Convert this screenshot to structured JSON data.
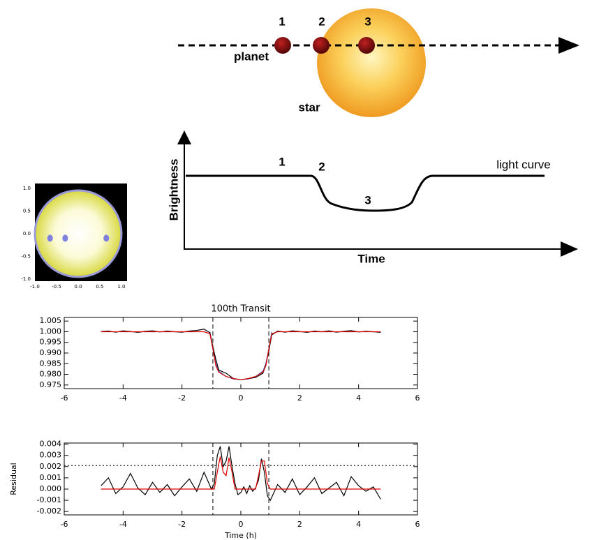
{
  "diagram": {
    "top_labels": [
      "1",
      "2",
      "3"
    ],
    "planet": "planet",
    "star": "star",
    "curve_labels": [
      "1",
      "2",
      "3"
    ],
    "curve_name": "light curve",
    "y_axis": "Brightness",
    "x_axis": "Time"
  },
  "chart_data": [
    {
      "type": "disk",
      "xlim": [
        -1.0,
        1.13
      ],
      "ylim": [
        -1.05,
        1.11
      ],
      "xticks": [
        {
          "value": -1,
          "label": "-1.0"
        },
        {
          "value": -0.5,
          "label": "-0.5"
        },
        {
          "value": 0,
          "label": "0.0"
        },
        {
          "value": 0.5,
          "label": "0.5"
        },
        {
          "value": 1,
          "label": "1.0"
        }
      ],
      "yticks": [
        {
          "value": 1,
          "label": "1.0"
        },
        {
          "value": 0.5,
          "label": "0.5"
        },
        {
          "value": 0,
          "label": "0.0"
        },
        {
          "value": -0.5,
          "label": "-0.5"
        },
        {
          "value": -1,
          "label": "-1.0"
        }
      ],
      "disk_radius": 1.0,
      "disk_color": "#f0f070",
      "limb_color": "#9a9ad8",
      "spot_color": "#8080e0",
      "x": [
        -0.65,
        -0.3,
        0.65
      ],
      "values": [
        -0.1,
        -0.1,
        -0.1
      ]
    },
    {
      "type": "line",
      "title": "100th Transit",
      "xlim": [
        -6,
        6
      ],
      "ylim": [
        0.9733,
        1.0067
      ],
      "xticks": [
        -6,
        -4,
        -2,
        0,
        2,
        4,
        6
      ],
      "yticks": [
        1.005,
        {
          "value": 1,
          "label": "1.000"
        },
        0.995,
        {
          "value": 0.99,
          "label": "0.990"
        },
        0.985,
        {
          "value": 0.98,
          "label": "0.980"
        },
        0.975
      ],
      "vlines": [
        -0.95,
        0.95
      ],
      "x": [
        -4.75,
        -4.5,
        -4.25,
        -4,
        -3.75,
        -3.5,
        -3.25,
        -3,
        -2.75,
        -2.5,
        -2.25,
        -2,
        -1.75,
        -1.5,
        -1.25,
        -1.05,
        -0.95,
        -0.85,
        -0.75,
        -0.5,
        -0.25,
        0,
        0.25,
        0.5,
        0.75,
        0.85,
        0.95,
        1.05,
        1.25,
        1.5,
        1.75,
        2,
        2.25,
        2.5,
        2.75,
        3,
        3.25,
        3.5,
        3.75,
        4,
        4.25,
        4.5,
        4.75
      ],
      "series": [
        {
          "color": "#5060c0",
          "x": [
            -1.05,
            -0.95,
            -0.85,
            -0.75,
            -0.5,
            -0.25,
            0,
            0.25,
            0.5,
            0.75,
            0.85,
            0.95,
            1.05
          ],
          "values": [
            1.0,
            0.992,
            0.985,
            0.9815,
            0.979,
            0.9778,
            0.9775,
            0.9778,
            0.979,
            0.9815,
            0.985,
            0.992,
            1.0
          ]
        },
        {
          "color": "#000000",
          "values": [
            1.0001,
            1.0003,
            0.9998,
            1.0004,
            1.0001,
            0.9997,
            1.0002,
            1.0004,
            0.9999,
            1.0003,
            1.0,
            0.9998,
            1.0003,
            1.0006,
            1.0012,
            0.9995,
            0.993,
            0.987,
            0.982,
            0.9805,
            0.978,
            0.9775,
            0.978,
            0.9785,
            0.9805,
            0.9845,
            0.991,
            0.9985,
            1.0003,
            0.9998,
            1.0004,
            1.0001,
            0.9997,
            1.0003,
            1.0,
            1.0004,
            0.9998,
            1.0002,
            1.0005,
            0.9999,
            1.0002,
            1.0,
            0.9997
          ]
        },
        {
          "color": "#e00000",
          "values": [
            1,
            1,
            1,
            1,
            1,
            1,
            1,
            1,
            1,
            1,
            1,
            1,
            1,
            1,
            1,
            0.999,
            0.992,
            0.984,
            0.981,
            0.979,
            0.978,
            0.9775,
            0.978,
            0.979,
            0.981,
            0.984,
            0.992,
            0.999,
            1,
            1,
            1,
            1,
            1,
            1,
            1,
            1,
            1,
            1,
            1,
            1,
            1,
            1,
            1
          ]
        }
      ]
    },
    {
      "type": "line",
      "xlabel": "Time (h)",
      "ylabel": "Residual",
      "xlim": [
        -6,
        6
      ],
      "ylim": [
        -0.0023,
        0.0041
      ],
      "xticks": [
        -6,
        -4,
        -2,
        0,
        2,
        4,
        6
      ],
      "yticks": [
        0.004,
        0.003,
        0.002,
        0.001,
        {
          "value": 0,
          "label": "0.000"
        },
        -0.001,
        -0.002
      ],
      "vlines": [
        -0.95,
        0.95
      ],
      "hline": 0.0021,
      "x": [
        -4.75,
        -4.5,
        -4.25,
        -4,
        -3.75,
        -3.5,
        -3.25,
        -3,
        -2.75,
        -2.5,
        -2.25,
        -2,
        -1.75,
        -1.5,
        -1.25,
        -1.0,
        -0.9,
        -0.8,
        -0.7,
        -0.6,
        -0.5,
        -0.4,
        -0.3,
        -0.2,
        -0.1,
        0,
        0.1,
        0.2,
        0.3,
        0.4,
        0.5,
        0.6,
        0.7,
        0.8,
        0.9,
        1.0,
        1.25,
        1.5,
        1.75,
        2,
        2.25,
        2.5,
        2.75,
        3,
        3.25,
        3.5,
        3.75,
        4,
        4.25,
        4.5,
        4.75
      ],
      "series": [
        {
          "color": "#000000",
          "values": [
            0.0003,
            0.001,
            -0.0004,
            0.0002,
            0.0014,
            0.0001,
            -0.0005,
            0.0006,
            -0.0003,
            0.0004,
            -0.0006,
            0.0002,
            0.0009,
            -0.0002,
            0.0015,
            0.0,
            0.0005,
            0.003,
            0.0038,
            0.002,
            0.0025,
            0.0038,
            0.002,
            0.0005,
            -0.0005,
            -0.0003,
            0.0002,
            -0.0004,
            0.0003,
            -0.0002,
            0.0001,
            0.0008,
            0.0027,
            0.0015,
            -0.0006,
            -0.001,
            0.0004,
            -0.0003,
            0.0009,
            -0.0005,
            0.0002,
            0.001,
            -0.0004,
            0.0001,
            0.0006,
            -0.0006,
            0.0011,
            0.0003,
            -0.0002,
            0.0002,
            -0.0009
          ]
        },
        {
          "color": "#e00000",
          "values": [
            0,
            0,
            0,
            0,
            0,
            0,
            0,
            0,
            0,
            0,
            0,
            0,
            0,
            0,
            0,
            0,
            0,
            0.0015,
            0.0029,
            0.0015,
            0.0012,
            0.0028,
            0.0015,
            0,
            0,
            0,
            0,
            0,
            0,
            0,
            0,
            0.0012,
            0.0025,
            0.0025,
            0.0005,
            0,
            0,
            0,
            0,
            0,
            0,
            0,
            0,
            0,
            0,
            0,
            0,
            0,
            0,
            0,
            0
          ]
        }
      ]
    }
  ]
}
